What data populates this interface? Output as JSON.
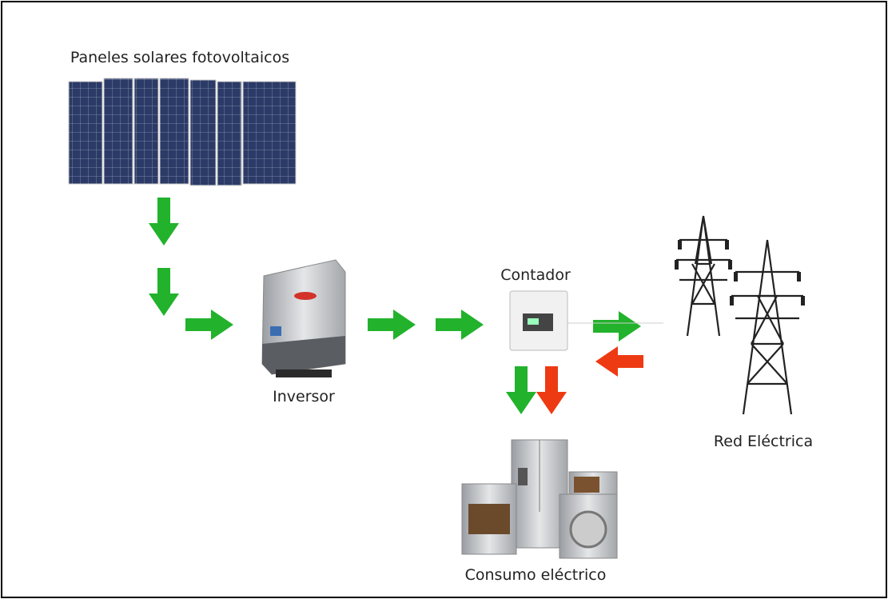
{
  "nodes": [
    {
      "label": "Paneles solares fotovoltaicos"
    },
    {
      "label": "Inversor"
    },
    {
      "label": "Contador"
    },
    {
      "label": "Red Eléctrica"
    },
    {
      "label": "Consumo eléctrico"
    }
  ]
}
